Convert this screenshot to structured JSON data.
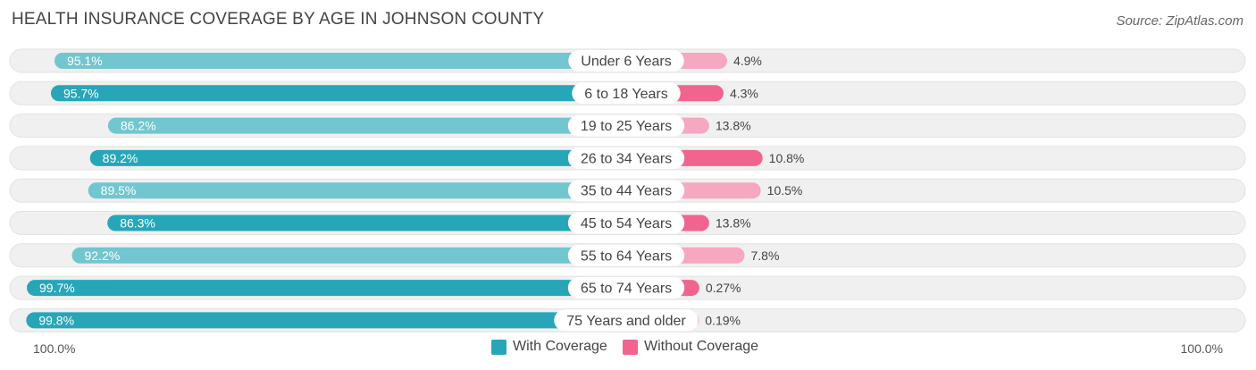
{
  "title": "HEALTH INSURANCE COVERAGE BY AGE IN JOHNSON COUNTY",
  "source": "Source: ZipAtlas.com",
  "legend": {
    "with": "With Coverage",
    "without": "Without Coverage"
  },
  "axis": {
    "left": "100.0%",
    "right": "100.0%"
  },
  "colors": {
    "with_dark": "#27a6b8",
    "with_light": "#72c6cf",
    "without_dark": "#f0648e",
    "without_light": "#f5a8c0",
    "track": "#f0f0f0"
  },
  "chart_data": {
    "type": "bar",
    "orientation": "horizontal-diverging",
    "title": "HEALTH INSURANCE COVERAGE BY AGE IN JOHNSON COUNTY",
    "categories": [
      "Under 6 Years",
      "6 to 18 Years",
      "19 to 25 Years",
      "26 to 34 Years",
      "35 to 44 Years",
      "45 to 54 Years",
      "55 to 64 Years",
      "65 to 74 Years",
      "75 Years and older"
    ],
    "series": [
      {
        "name": "With Coverage",
        "values": [
          95.1,
          95.7,
          86.2,
          89.2,
          89.5,
          86.3,
          92.2,
          99.7,
          99.8
        ],
        "labels": [
          "95.1%",
          "95.7%",
          "86.2%",
          "89.2%",
          "89.5%",
          "86.3%",
          "92.2%",
          "99.7%",
          "99.8%"
        ]
      },
      {
        "name": "Without Coverage",
        "values": [
          4.9,
          4.3,
          13.8,
          10.8,
          10.5,
          13.8,
          7.8,
          0.27,
          0.19
        ],
        "labels": [
          "4.9%",
          "4.3%",
          "13.8%",
          "10.8%",
          "10.5%",
          "13.8%",
          "7.8%",
          "0.27%",
          "0.19%"
        ]
      }
    ],
    "xlim": [
      0,
      100
    ],
    "legend": "bottom-center"
  }
}
